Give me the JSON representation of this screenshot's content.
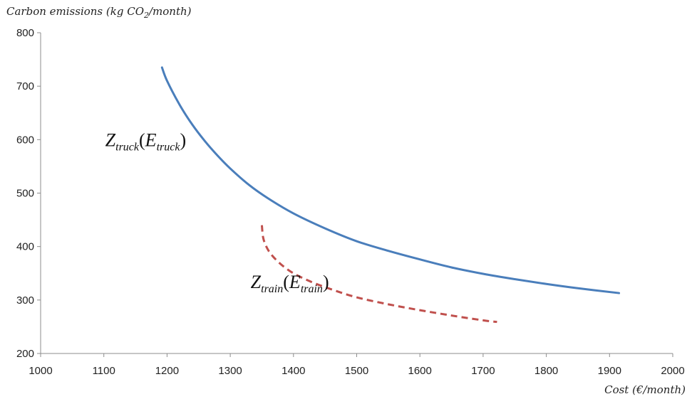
{
  "chart_data": {
    "type": "line",
    "title": "",
    "xlabel": "Cost  (€/month)",
    "ylabel": {
      "pre": "Carbon emissions (kg CO",
      "sub": "2",
      "post": "/month)"
    },
    "xlim": [
      1000,
      2000
    ],
    "ylim": [
      200,
      800
    ],
    "xticks": [
      1000,
      1100,
      1200,
      1300,
      1400,
      1500,
      1600,
      1700,
      1800,
      1900,
      2000
    ],
    "yticks": [
      200,
      300,
      400,
      500,
      600,
      700,
      800
    ],
    "grid": false,
    "legend": "none",
    "series": [
      {
        "key": "truck",
        "color": "#4a7ebb",
        "dash": "solid",
        "points": [
          [
            1192,
            735
          ],
          [
            1200,
            710
          ],
          [
            1220,
            665
          ],
          [
            1240,
            628
          ],
          [
            1260,
            597
          ],
          [
            1280,
            570
          ],
          [
            1300,
            546
          ],
          [
            1330,
            515
          ],
          [
            1360,
            490
          ],
          [
            1400,
            462
          ],
          [
            1450,
            434
          ],
          [
            1500,
            410
          ],
          [
            1550,
            392
          ],
          [
            1600,
            376
          ],
          [
            1650,
            361
          ],
          [
            1700,
            349
          ],
          [
            1750,
            339
          ],
          [
            1800,
            330
          ],
          [
            1850,
            322
          ],
          [
            1915,
            313
          ]
        ]
      },
      {
        "key": "train",
        "color": "#c0504d",
        "dash": "dashed",
        "points": [
          [
            1350,
            440
          ],
          [
            1352,
            417
          ],
          [
            1357,
            400
          ],
          [
            1365,
            385
          ],
          [
            1380,
            367
          ],
          [
            1400,
            350
          ],
          [
            1430,
            333
          ],
          [
            1460,
            320
          ],
          [
            1500,
            305
          ],
          [
            1550,
            292
          ],
          [
            1600,
            281
          ],
          [
            1650,
            271
          ],
          [
            1700,
            262
          ],
          [
            1722,
            259
          ]
        ]
      }
    ],
    "annotations": [
      {
        "series": "truck",
        "Z": "Z",
        "zsub": "truck",
        "E": "E",
        "esub": "truck",
        "x": 1180,
        "y": 605
      },
      {
        "series": "train",
        "Z": "Z",
        "zsub": "train",
        "E": "E",
        "esub": "train",
        "x": 1410,
        "y": 340
      }
    ]
  }
}
